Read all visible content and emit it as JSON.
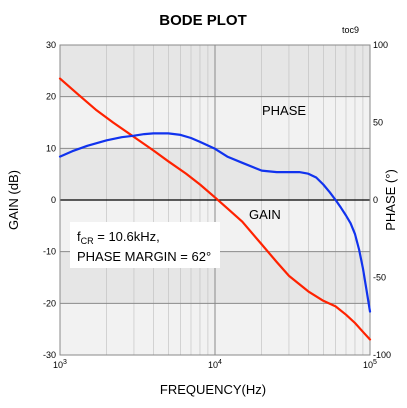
{
  "chart_data": {
    "type": "line",
    "title": "BODE PLOT",
    "tag": "toc9",
    "xlabel": "FREQUENCY(Hz)",
    "x_scale": "log",
    "xlim": [
      1000,
      100000
    ],
    "x_ticks": [
      {
        "value": 1000,
        "base": "10",
        "exp": "3"
      },
      {
        "value": 10000,
        "base": "10",
        "exp": "4"
      },
      {
        "value": 100000,
        "base": "10",
        "exp": "5"
      }
    ],
    "y_left": {
      "label": "GAIN (dB)",
      "lim": [
        -30,
        30
      ],
      "ticks": [
        "-30",
        "-20",
        "-10",
        "0",
        "10",
        "20",
        "30"
      ]
    },
    "y_right": {
      "label": "PHASE (°)",
      "lim": [
        -100,
        100
      ],
      "ticks": [
        "-100",
        "-50",
        "0",
        "50",
        "100"
      ]
    },
    "grid": true,
    "series": [
      {
        "name": "GAIN",
        "axis": "left",
        "color": "#ff2200",
        "x": [
          1000,
          1300,
          1700,
          2200,
          3000,
          4000,
          5000,
          6500,
          8000,
          10000,
          12000,
          15000,
          20000,
          25000,
          30000,
          40000,
          50000,
          60000,
          70000,
          80000,
          90000,
          100000
        ],
        "y": [
          23.5,
          20.5,
          17.5,
          15,
          12.2,
          9.6,
          7.5,
          5.1,
          3,
          0.5,
          -1.6,
          -4.2,
          -8.6,
          -12,
          -14.7,
          -17.7,
          -19.5,
          -20.6,
          -22.2,
          -23.8,
          -25.5,
          -27
        ]
      },
      {
        "name": "PHASE",
        "axis": "right",
        "color": "#1133ee",
        "x": [
          1000,
          1200,
          1500,
          2000,
          2500,
          3000,
          3500,
          4000,
          5000,
          6000,
          7000,
          8000,
          10000,
          12000,
          15000,
          20000,
          25000,
          30000,
          35000,
          40000,
          45000,
          50000,
          55000,
          60000,
          65000,
          70000,
          75000,
          80000,
          85000,
          90000,
          95000,
          100000
        ],
        "y": [
          28,
          31.5,
          35,
          38.5,
          40.5,
          41.5,
          42.5,
          43,
          43,
          42,
          40,
          37.5,
          33,
          28,
          24,
          19,
          18,
          18,
          18,
          17,
          14.5,
          10,
          5,
          0,
          -5,
          -10,
          -15,
          -22,
          -32,
          -44,
          -58,
          -72
        ]
      }
    ],
    "annotations": {
      "phase_label": "PHASE",
      "gain_label": "GAIN",
      "fcr_f": "f",
      "fcr_sub": "CR",
      "fcr_rest": " = 10.6kHz,",
      "phase_margin": "PHASE MARGIN = 62°"
    },
    "colors": {
      "gain": "#ff2200",
      "phase": "#1133ee",
      "band_light": "#f2f2f2",
      "band_dark": "#e6e6e6",
      "gridline": "#8a8a8a",
      "minor_gridline": "#bdbdbd"
    }
  }
}
